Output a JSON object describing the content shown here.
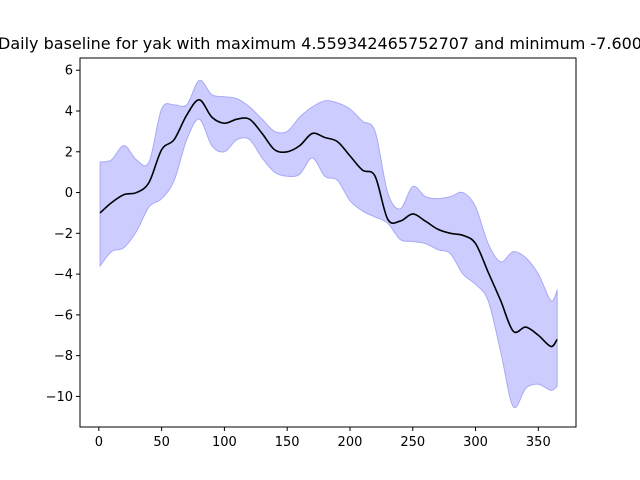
{
  "chart_data": {
    "type": "line",
    "title": "Daily baseline for yak with maximum 4.559342465752707 and minimum -7.600",
    "xlabel": "",
    "ylabel": "",
    "xlim": [
      -15,
      380
    ],
    "ylim": [
      -11.5,
      6.6
    ],
    "xticks": [
      0,
      50,
      100,
      150,
      200,
      250,
      300,
      350
    ],
    "yticks": [
      -10,
      -8,
      -6,
      -4,
      -2,
      0,
      2,
      4,
      6
    ],
    "ytick_labels": [
      "−10",
      "−8",
      "−6",
      "−4",
      "−2",
      "0",
      "2",
      "4",
      "6"
    ],
    "grid": false,
    "legend": "none",
    "colors": {
      "line": "#000000",
      "band_fill": "#ccccff",
      "band_edge": "#a9a9f5"
    },
    "series": [
      {
        "x": [
          1,
          10,
          20,
          30,
          40,
          50,
          60,
          70,
          80,
          90,
          100,
          110,
          120,
          130,
          140,
          150,
          160,
          170,
          180,
          190,
          200,
          210,
          220,
          230,
          240,
          250,
          260,
          270,
          280,
          290,
          300,
          310,
          320,
          330,
          340,
          350,
          360,
          365
        ],
        "y": [
          -1.0,
          -0.5,
          -0.1,
          0.0,
          0.5,
          2.1,
          2.6,
          3.8,
          4.55,
          3.7,
          3.4,
          3.6,
          3.6,
          2.9,
          2.1,
          2.0,
          2.3,
          2.9,
          2.7,
          2.5,
          1.8,
          1.1,
          0.8,
          -1.3,
          -1.4,
          -1.05,
          -1.4,
          -1.8,
          -2.0,
          -2.1,
          -2.5,
          -3.9,
          -5.3,
          -6.8,
          -6.6,
          -7.0,
          -7.55,
          -7.2
        ],
        "upper": [
          1.5,
          1.6,
          2.3,
          1.6,
          1.5,
          4.1,
          4.3,
          4.3,
          5.5,
          4.8,
          4.7,
          4.6,
          4.2,
          3.6,
          3.0,
          3.0,
          3.7,
          4.2,
          4.5,
          4.4,
          4.1,
          3.5,
          3.0,
          0.0,
          -0.8,
          0.3,
          -0.2,
          -0.3,
          -0.2,
          0.0,
          -0.7,
          -2.5,
          -3.4,
          -2.9,
          -3.2,
          -4.0,
          -5.3,
          -4.8
        ],
        "lower": [
          -3.6,
          -2.9,
          -2.7,
          -1.9,
          -0.7,
          -0.3,
          0.6,
          2.6,
          3.6,
          2.3,
          2.0,
          2.6,
          2.6,
          1.7,
          1.0,
          0.8,
          0.9,
          1.7,
          0.8,
          0.6,
          -0.4,
          -0.9,
          -1.2,
          -1.5,
          -2.3,
          -2.4,
          -2.5,
          -2.8,
          -3.0,
          -4.0,
          -4.5,
          -5.3,
          -7.8,
          -10.5,
          -9.6,
          -9.4,
          -9.7,
          -9.5
        ]
      }
    ]
  }
}
